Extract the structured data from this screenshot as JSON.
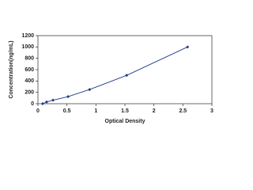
{
  "chart_data": {
    "type": "scatter",
    "x_label": "Optical Density",
    "y_label": "Concentration(ng/mL)",
    "series": [
      {
        "color": "#1f3a8a",
        "x": [
          0.08,
          0.15,
          0.26,
          0.52,
          0.89,
          1.53,
          2.58
        ],
        "values": [
          0,
          31.25,
          62.5,
          125,
          250,
          500,
          1000
        ]
      }
    ],
    "xlim": [
      0,
      3
    ],
    "xticks": [
      0,
      0.5,
      1,
      1.5,
      2,
      2.5,
      3
    ],
    "ylim": [
      0,
      1200
    ],
    "yticks": [
      0,
      200,
      400,
      600,
      800,
      1000,
      1200
    ],
    "grid": false
  }
}
